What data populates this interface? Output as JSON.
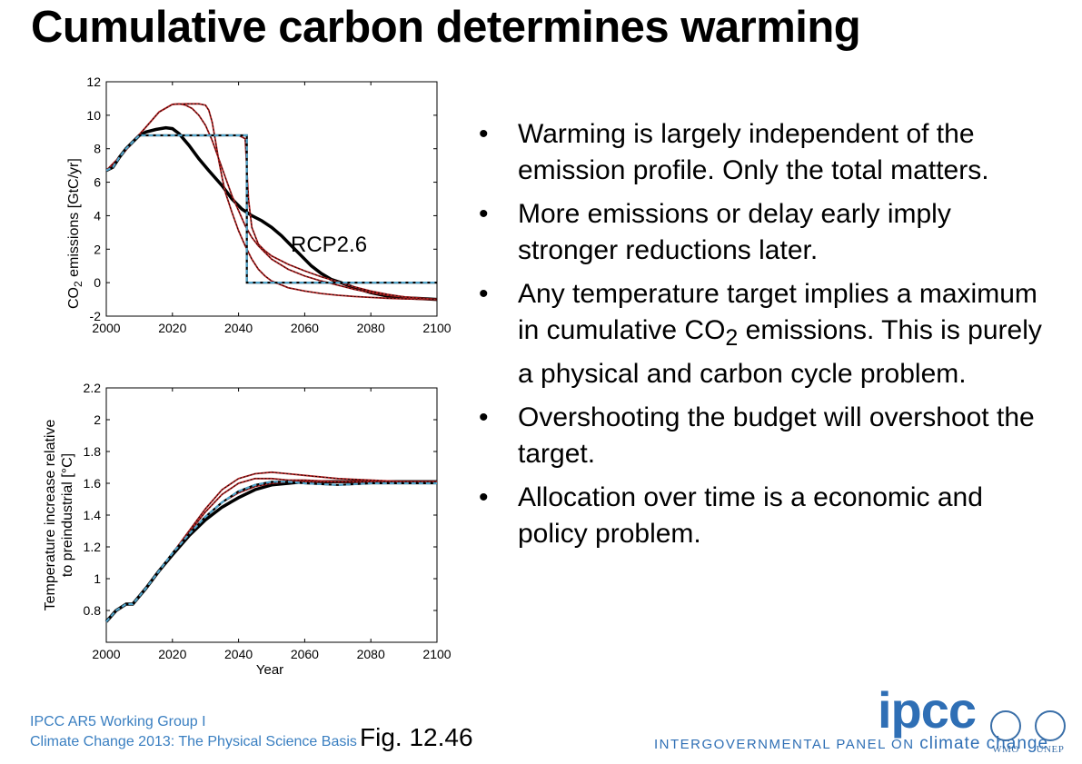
{
  "title": "Cumulative carbon determines warming",
  "bullets": [
    {
      "text": "Warming is largely independent of the emission profile. Only the total matters."
    },
    {
      "text": "More emissions or delay early imply stronger reductions later."
    },
    {
      "text_before": "Any temperature target implies a maximum in cumulative CO",
      "sub": "2",
      "text_after": " emissions. This is purely a physical and carbon cycle problem."
    },
    {
      "text": "Overshooting the budget will overshoot the target."
    },
    {
      "text": "Allocation over time is a economic and policy problem."
    }
  ],
  "bullet_char": "•",
  "footer": {
    "line1": "IPCC AR5 Working Group I",
    "line2": "Climate Change 2013:  The Physical Science Basis",
    "figure": "Fig. 12.46",
    "logo_text": "ipcc",
    "org_name": "INTERGOVERNMENTAL PANEL ON ",
    "org_name_cc": "climate change",
    "wmo": "WMO",
    "unep": "UNEP"
  },
  "colors": {
    "red_series": "#b22222",
    "blue_series": "#4fa3c9",
    "black_series": "#000000",
    "brand_blue": "#2f6fb5"
  },
  "icons": {
    "bullet": "bullet-dot-icon",
    "wmo": "wmo-emblem-icon",
    "unep": "unep-emblem-icon"
  },
  "chart_data": [
    {
      "type": "line",
      "ylabel_main": "CO",
      "ylabel_sub": "2",
      "ylabel_rest": " emissions [GtC/yr]",
      "xlabel": "",
      "annotation": "RCP2.6",
      "xlim": [
        2000,
        2100
      ],
      "ylim": [
        -2,
        12
      ],
      "xticks": [
        2000,
        2020,
        2040,
        2060,
        2080,
        2100
      ],
      "yticks": [
        -2,
        0,
        2,
        4,
        6,
        8,
        10,
        12
      ],
      "series": [
        {
          "color": "#000000",
          "style": "thick",
          "x": [
            2000,
            2002,
            2004,
            2006,
            2008,
            2010,
            2012,
            2015,
            2018,
            2020,
            2022,
            2025,
            2028,
            2031,
            2035,
            2038,
            2041,
            2044,
            2047,
            2050,
            2053,
            2056,
            2059,
            2062,
            2065,
            2068,
            2071,
            2075,
            2080,
            2085,
            2090,
            2095,
            2100
          ],
          "y": [
            6.7,
            6.9,
            7.5,
            8.0,
            8.4,
            8.8,
            9.0,
            9.15,
            9.25,
            9.2,
            8.9,
            8.2,
            7.4,
            6.7,
            5.8,
            5.0,
            4.4,
            4.0,
            3.7,
            3.3,
            2.8,
            2.2,
            1.6,
            1.0,
            0.55,
            0.2,
            0.0,
            -0.3,
            -0.6,
            -0.8,
            -0.9,
            -0.95,
            -1.0
          ]
        },
        {
          "color": "#b22222",
          "style": "thin",
          "x": [
            2000,
            2004,
            2008,
            2012,
            2016,
            2020,
            2022,
            2024,
            2026,
            2028,
            2030,
            2032,
            2034,
            2036,
            2038,
            2040,
            2042,
            2044,
            2046,
            2048,
            2050,
            2055,
            2060,
            2065,
            2070,
            2075,
            2080,
            2085,
            2090,
            2095,
            2100
          ],
          "y": [
            6.7,
            7.5,
            8.4,
            9.3,
            10.2,
            10.65,
            10.68,
            10.6,
            10.4,
            10.0,
            9.4,
            8.5,
            7.4,
            6.3,
            5.2,
            4.3,
            3.4,
            2.7,
            2.2,
            1.8,
            1.4,
            0.8,
            0.4,
            0.1,
            -0.15,
            -0.4,
            -0.6,
            -0.75,
            -0.85,
            -0.93,
            -1.0
          ]
        },
        {
          "color": "#b22222",
          "style": "thin",
          "x": [
            2000,
            2004,
            2008,
            2012,
            2016,
            2020,
            2024,
            2028,
            2030,
            2031,
            2032,
            2033,
            2034,
            2035,
            2036,
            2038,
            2040,
            2042,
            2044,
            2046,
            2048,
            2050,
            2055,
            2060,
            2065,
            2070,
            2075,
            2080,
            2085,
            2090,
            2095,
            2100
          ],
          "y": [
            6.7,
            7.5,
            8.4,
            9.3,
            10.2,
            10.65,
            10.68,
            10.68,
            10.6,
            10.3,
            9.6,
            8.5,
            7.3,
            6.3,
            5.4,
            4.2,
            3.1,
            2.2,
            1.4,
            0.8,
            0.4,
            0.1,
            -0.3,
            -0.5,
            -0.65,
            -0.75,
            -0.83,
            -0.88,
            -0.93,
            -0.97,
            -0.99,
            -1.0
          ]
        },
        {
          "color": "#b22222",
          "style": "thin",
          "x": [
            2000,
            2004,
            2008,
            2010,
            2014,
            2018,
            2022,
            2026,
            2030,
            2034,
            2038,
            2040,
            2042,
            2043,
            2044,
            2046,
            2048,
            2050,
            2055,
            2060,
            2065,
            2070,
            2075,
            2080,
            2085,
            2090,
            2095,
            2100
          ],
          "y": [
            6.7,
            7.5,
            8.4,
            8.8,
            8.8,
            8.8,
            8.8,
            8.8,
            8.8,
            8.8,
            8.8,
            8.8,
            8.6,
            5.0,
            3.3,
            2.3,
            1.9,
            1.6,
            1.1,
            0.7,
            0.35,
            0.05,
            -0.25,
            -0.5,
            -0.7,
            -0.85,
            -0.95,
            -1.0
          ]
        },
        {
          "color": "#4fa3c9",
          "style": "dashed",
          "x": [
            2000,
            2002,
            2004,
            2006,
            2008,
            2010,
            2020,
            2030,
            2040,
            2042.5,
            2042.5,
            2060,
            2080,
            2100
          ],
          "y": [
            6.7,
            6.9,
            7.5,
            8.0,
            8.4,
            8.8,
            8.8,
            8.8,
            8.8,
            8.8,
            0,
            0,
            0,
            0
          ]
        }
      ]
    },
    {
      "type": "line",
      "ylabel_line1": "Temperature increase relative",
      "ylabel_line2": "to preindustrial [°C]",
      "xlabel": "Year",
      "xlim": [
        2000,
        2100
      ],
      "ylim": [
        0.6,
        2.2
      ],
      "xticks": [
        2000,
        2020,
        2040,
        2060,
        2080,
        2100
      ],
      "yticks": [
        0.8,
        1,
        1.2,
        1.4,
        1.6,
        1.8,
        2,
        2.2
      ],
      "series": [
        {
          "color": "#000000",
          "style": "thick",
          "x": [
            2000,
            2003,
            2006,
            2008,
            2012,
            2016,
            2020,
            2025,
            2030,
            2035,
            2040,
            2045,
            2050,
            2055,
            2060,
            2070,
            2080,
            2090,
            2100
          ],
          "y": [
            0.73,
            0.8,
            0.84,
            0.84,
            0.94,
            1.05,
            1.15,
            1.27,
            1.37,
            1.45,
            1.51,
            1.56,
            1.59,
            1.6,
            1.61,
            1.61,
            1.61,
            1.61,
            1.61
          ]
        },
        {
          "color": "#b22222",
          "style": "thin",
          "x": [
            2000,
            2003,
            2006,
            2008,
            2012,
            2016,
            2020,
            2025,
            2030,
            2035,
            2040,
            2045,
            2050,
            2055,
            2060,
            2070,
            2080,
            2090,
            2100
          ],
          "y": [
            0.73,
            0.8,
            0.84,
            0.84,
            0.94,
            1.05,
            1.16,
            1.3,
            1.44,
            1.56,
            1.63,
            1.66,
            1.67,
            1.66,
            1.65,
            1.63,
            1.62,
            1.61,
            1.61
          ]
        },
        {
          "color": "#b22222",
          "style": "thin",
          "x": [
            2000,
            2003,
            2006,
            2008,
            2012,
            2016,
            2020,
            2025,
            2030,
            2035,
            2040,
            2045,
            2050,
            2055,
            2060,
            2070,
            2080,
            2090,
            2100
          ],
          "y": [
            0.73,
            0.8,
            0.84,
            0.84,
            0.94,
            1.05,
            1.16,
            1.29,
            1.42,
            1.53,
            1.6,
            1.63,
            1.63,
            1.62,
            1.62,
            1.61,
            1.61,
            1.61,
            1.61
          ]
        },
        {
          "color": "#b22222",
          "style": "thin",
          "x": [
            2000,
            2003,
            2006,
            2008,
            2012,
            2016,
            2020,
            2025,
            2030,
            2035,
            2040,
            2045,
            2050,
            2055,
            2060,
            2070,
            2080,
            2090,
            2100
          ],
          "y": [
            0.73,
            0.8,
            0.84,
            0.84,
            0.94,
            1.05,
            1.16,
            1.28,
            1.39,
            1.48,
            1.54,
            1.58,
            1.6,
            1.61,
            1.61,
            1.61,
            1.61,
            1.61,
            1.61
          ]
        },
        {
          "color": "#4fa3c9",
          "style": "dashed",
          "x": [
            2000,
            2003,
            2006,
            2008,
            2012,
            2016,
            2020,
            2025,
            2030,
            2035,
            2040,
            2045,
            2050,
            2055,
            2060,
            2070,
            2080,
            2090,
            2100
          ],
          "y": [
            0.73,
            0.8,
            0.84,
            0.84,
            0.94,
            1.05,
            1.16,
            1.28,
            1.39,
            1.48,
            1.55,
            1.59,
            1.61,
            1.61,
            1.6,
            1.59,
            1.6,
            1.6,
            1.6
          ]
        }
      ]
    }
  ]
}
